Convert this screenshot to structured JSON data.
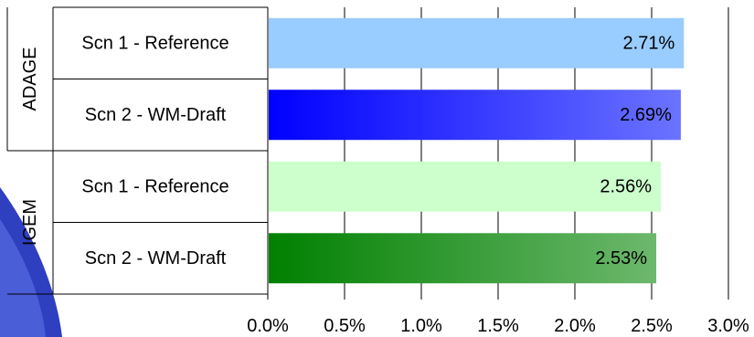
{
  "chart_data": {
    "type": "bar",
    "orientation": "horizontal",
    "title": "",
    "xlabel": "",
    "ylabel": "",
    "xlim": [
      0,
      3.0
    ],
    "x_tick_values": [
      0,
      0.5,
      1.0,
      1.5,
      2.0,
      2.5,
      3.0
    ],
    "x_tick_labels": [
      "0.0%",
      "0.5%",
      "1.0%",
      "1.5%",
      "2.0%",
      "2.5%",
      "3.0%"
    ],
    "grid": "vertical",
    "legend": "none",
    "groups": [
      {
        "name": "ADAGE",
        "bars": [
          {
            "label": "Scn 1 - Reference",
            "value": 2.71,
            "data_label": "2.71%",
            "color": "#99ccff"
          },
          {
            "label": "Scn 2 - WM-Draft",
            "value": 2.69,
            "data_label": "2.69%",
            "color_start": "#0000ff",
            "color_end": "#6b73ff"
          }
        ]
      },
      {
        "name": "IGEM",
        "bars": [
          {
            "label": "Scn 1 - Reference",
            "value": 2.56,
            "data_label": "2.56%",
            "color": "#ccffcc"
          },
          {
            "label": "Scn 2 - WM-Draft",
            "value": 2.53,
            "data_label": "2.53%",
            "color_start": "#008000",
            "color_end": "#6db86d"
          }
        ]
      }
    ]
  }
}
